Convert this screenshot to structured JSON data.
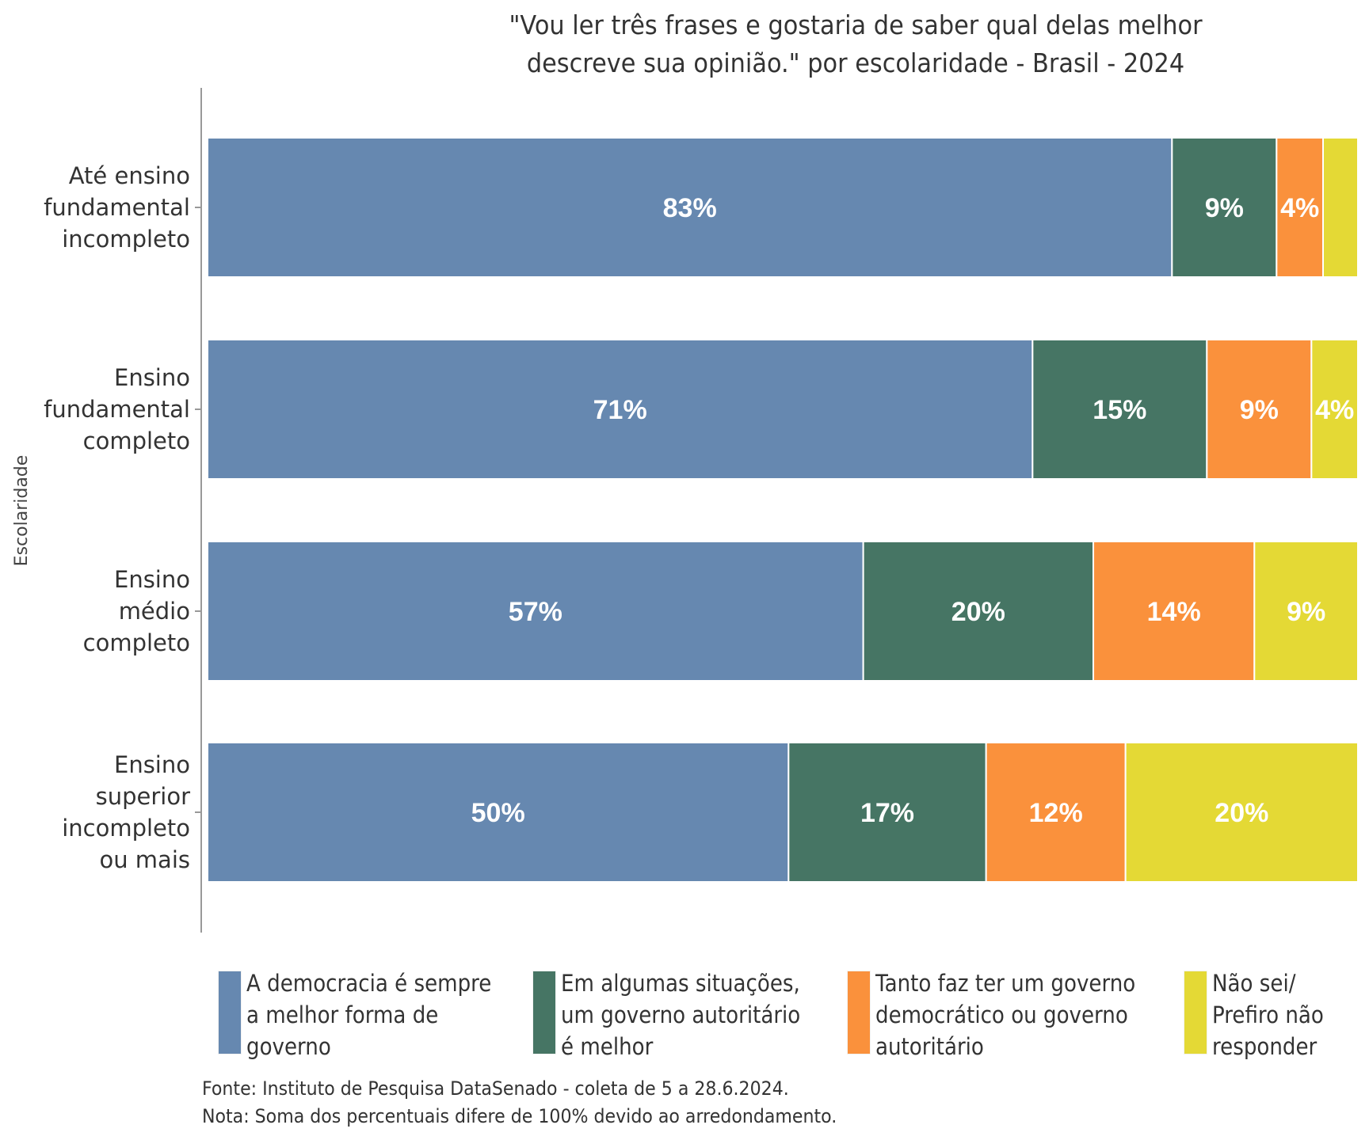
{
  "chart_data": {
    "type": "bar",
    "orientation": "horizontal",
    "stacked": true,
    "title": "\"Vou ler três frases e gostaria de saber qual delas melhor descreve sua opinião.\" por escolaridade - Brasil - 2024",
    "title_lines": [
      "\"Vou ler três frases e gostaria de saber qual delas melhor",
      "descreve sua opinião.\" por escolaridade - Brasil - 2024"
    ],
    "xlabel": "",
    "ylabel": "Escolaridade",
    "xlim": [
      0,
      100
    ],
    "grid": false,
    "legend_position": "bottom",
    "categories": [
      "Até ensino fundamental incompleto",
      "Ensino fundamental completo",
      "Ensino médio completo",
      "Ensino superior incompleto ou mais"
    ],
    "category_lines": [
      [
        "Até ensino",
        "fundamental",
        "incompleto"
      ],
      [
        "Ensino",
        "fundamental",
        "completo"
      ],
      [
        "Ensino",
        "médio",
        "completo"
      ],
      [
        "Ensino",
        "superior",
        "incompleto",
        "ou mais"
      ]
    ],
    "series": [
      {
        "name": "A democracia é sempre a melhor forma de governo",
        "legend_lines": "A democracia é sempre\na melhor forma de\ngoverno",
        "color": "#6688B0",
        "values": [
          83,
          71,
          57,
          50
        ],
        "labels": [
          "83%",
          "71%",
          "57%",
          "50%"
        ]
      },
      {
        "name": "Em algumas situações, um governo autoritário é melhor",
        "legend_lines": "Em algumas situações,\num governo autoritário\né melhor",
        "color": "#467564",
        "values": [
          9,
          15,
          20,
          17
        ],
        "labels": [
          "9%",
          "15%",
          "20%",
          "17%"
        ]
      },
      {
        "name": "Tanto faz ter um governo democrático ou governo autoritário",
        "legend_lines": "Tanto faz ter um governo\ndemocrático ou governo\nautoritário",
        "color": "#FA913C",
        "values": [
          4,
          9,
          14,
          12
        ],
        "labels": [
          "4%",
          "9%",
          "14%",
          "12%"
        ]
      },
      {
        "name": "Não sei/ Prefiro não responder",
        "legend_lines": "Não sei/\nPrefiro não\nresponder",
        "color": "#E4D935",
        "values": [
          3,
          4,
          9,
          20
        ],
        "labels": [
          "",
          "4%",
          "9%",
          "20%"
        ]
      }
    ]
  },
  "footnotes": {
    "source": "Fonte: Instituto de Pesquisa DataSenado - coleta de 5 a 28.6.2024.",
    "note": "Nota: Soma dos percentuais difere de 100% devido ao arredondamento."
  }
}
